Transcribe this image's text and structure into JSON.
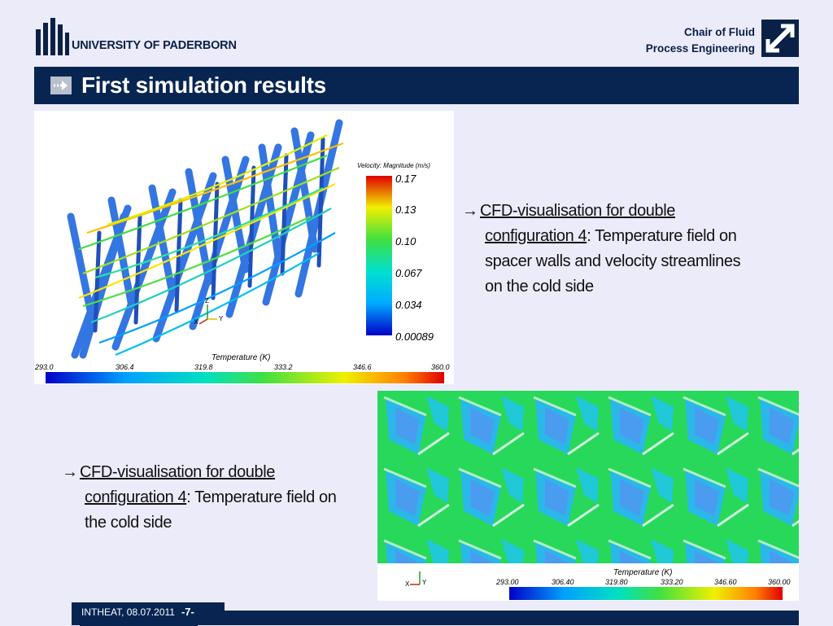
{
  "header": {
    "university": "UNIVERSITY OF PADERBORN",
    "chair_line1": "Chair of Fluid",
    "chair_line2": "Process Engineering"
  },
  "slide": {
    "title": "First simulation results"
  },
  "figure1": {
    "legend_title": "Velocity: Magnitude (m/s)",
    "legend_ticks": [
      "0.17",
      "0.13",
      "0.10",
      "0.067",
      "0.034",
      "0.00089"
    ],
    "colorbar_title": "Temperature (K)",
    "colorbar_ticks": [
      "293.0",
      "306.4",
      "319.8",
      "333.2",
      "346.6",
      "360.0"
    ],
    "axis_z": "Z",
    "axis_x": "X",
    "axis_y": "Y"
  },
  "figure2": {
    "colorbar_title": "Temperature (K)",
    "colorbar_ticks": [
      "293.00",
      "306.40",
      "319.80",
      "333.20",
      "346.60",
      "360.00"
    ],
    "axis_x": "X",
    "axis_y": "Y"
  },
  "captions": {
    "cap1_link_a": "CFD-visualisation for double ",
    "cap1_link_b": "configuration 4",
    "cap1_rest_a": ": Temperature field on",
    "cap1_rest_b": "spacer walls and velocity streamlines",
    "cap1_rest_c": "on the cold side",
    "cap2_link_a": "CFD-visualisation for double ",
    "cap2_link_b": "configuration 4",
    "cap2_rest_a": ": Temperature field on",
    "cap2_rest_b": "the cold side"
  },
  "footer": {
    "event": "INTHEAT, 08.07.2011",
    "page": "-7-"
  },
  "colors": {
    "navy": "#082552",
    "background": "#ecebfa",
    "accent_cold": "#1e5fd8",
    "accent_green": "#3fd24a"
  }
}
